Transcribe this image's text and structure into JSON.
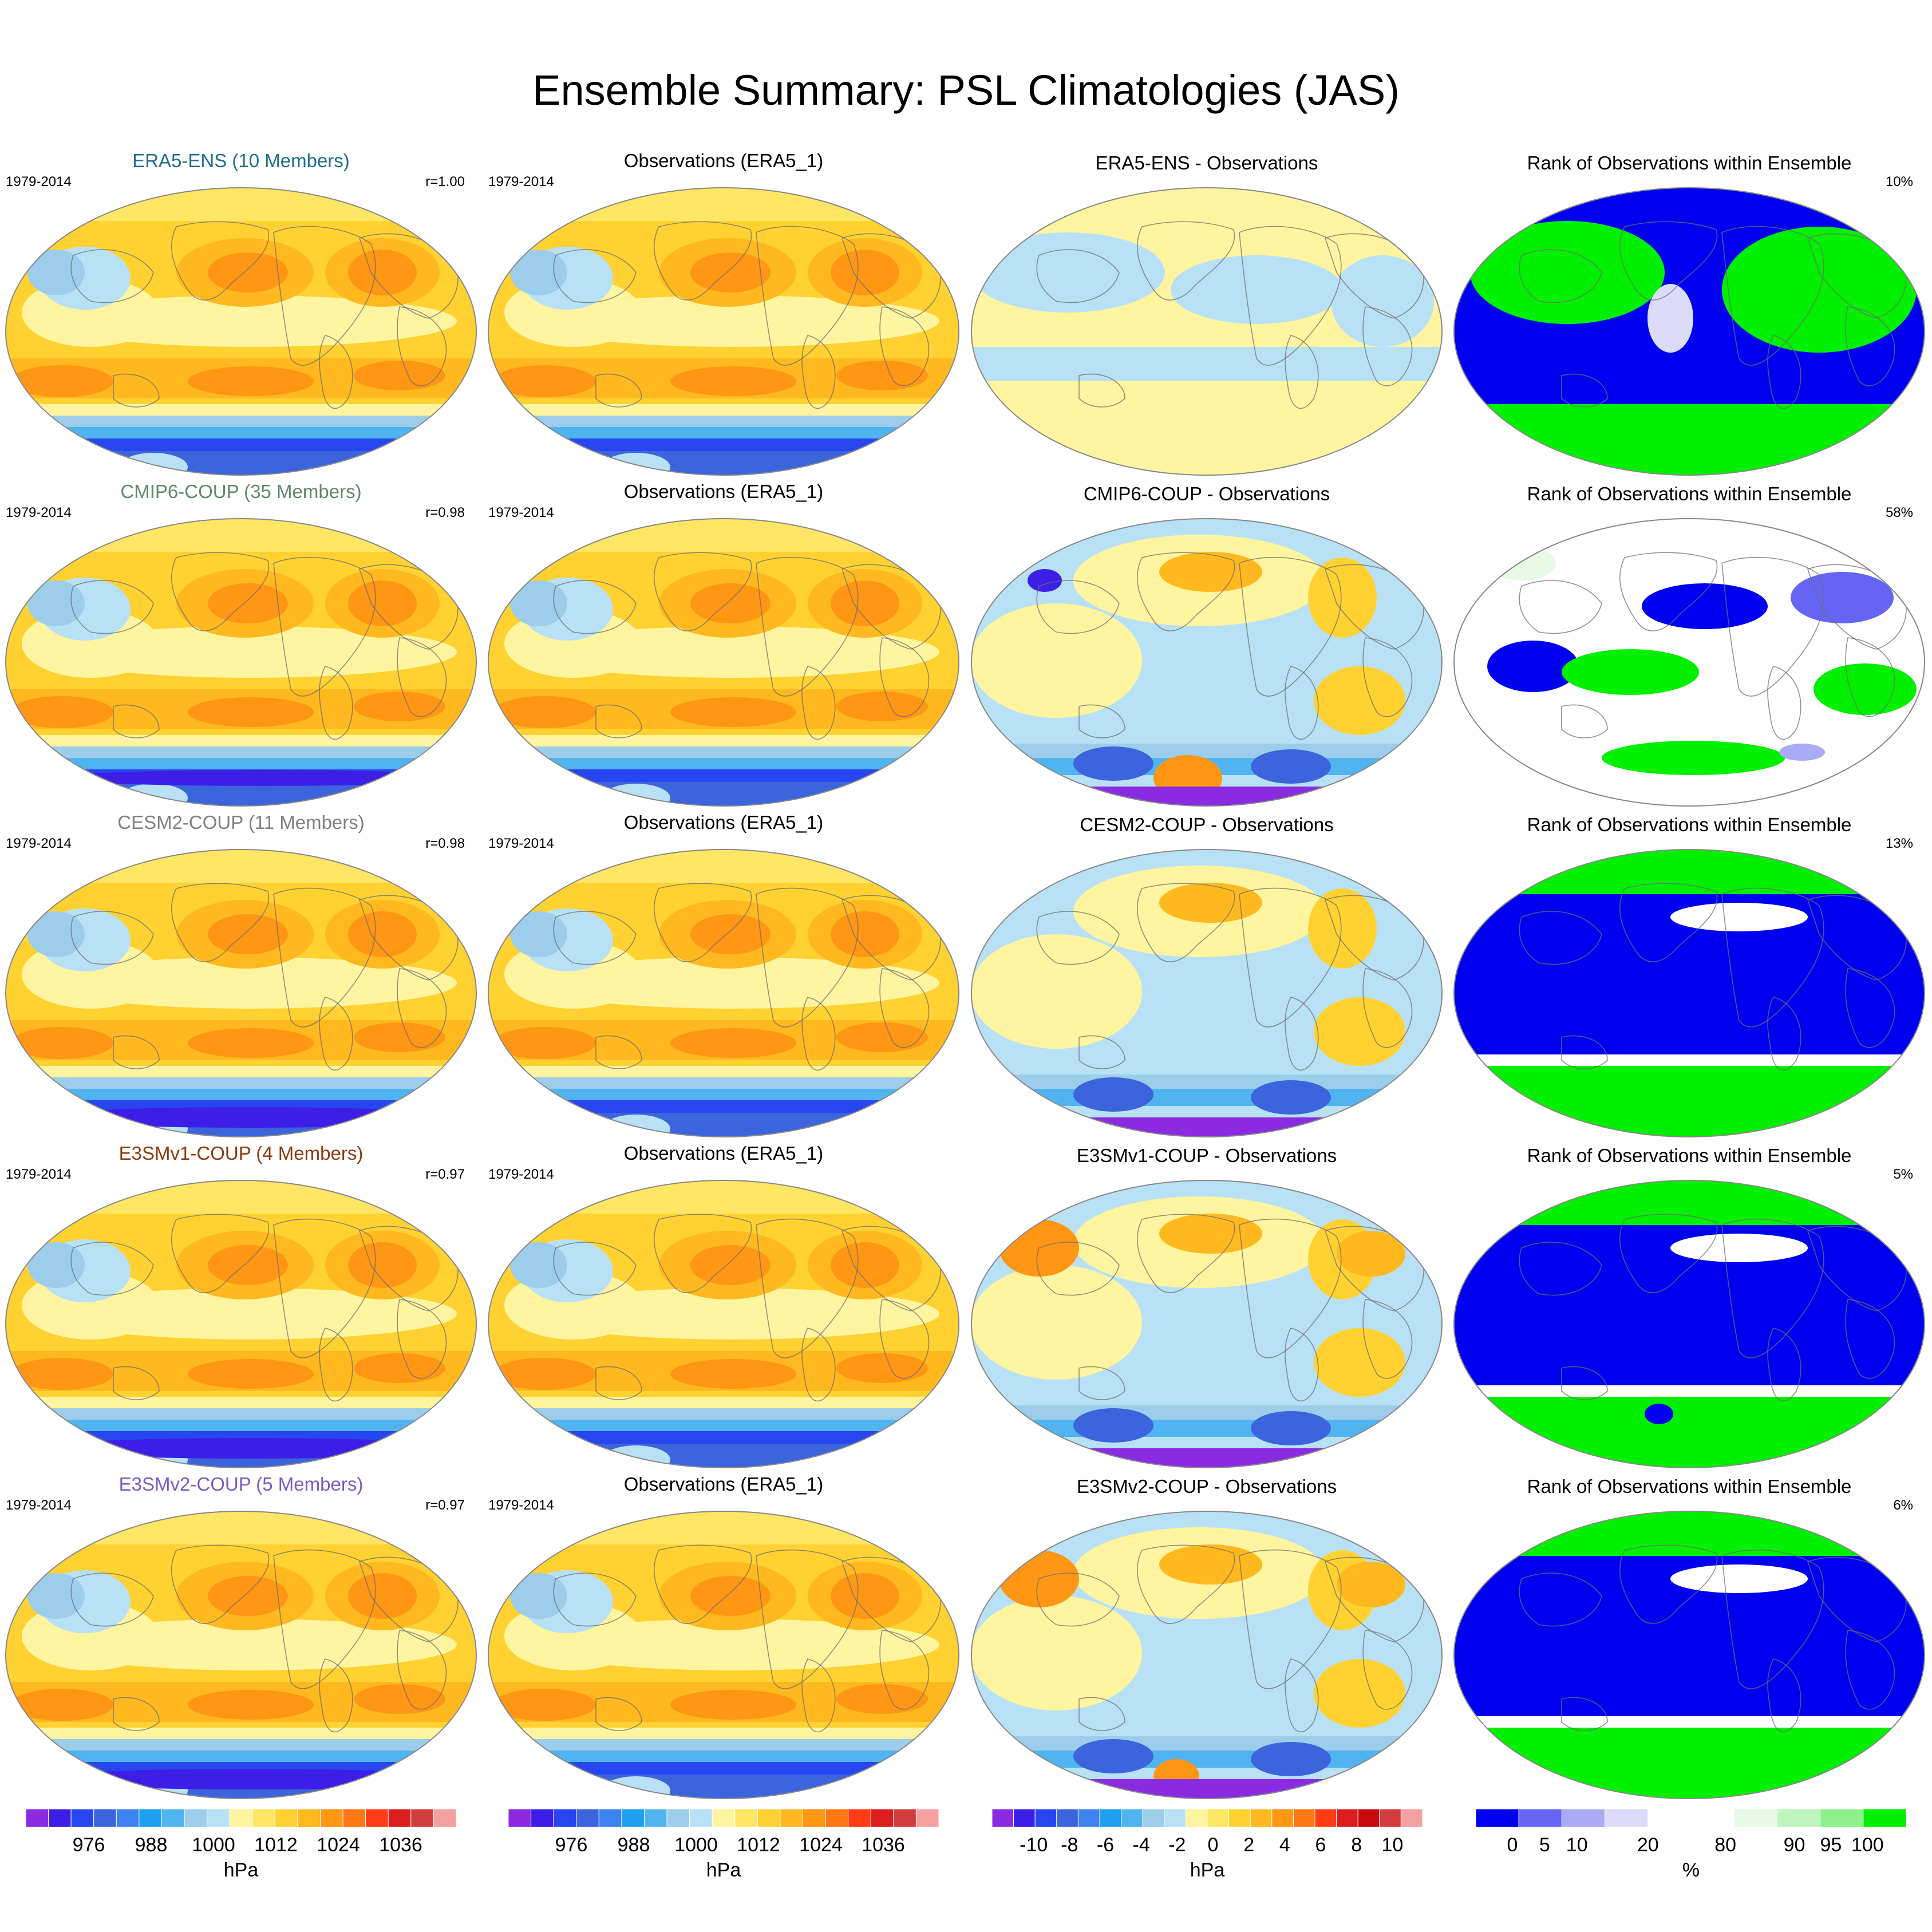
{
  "title": "Ensemble Summary: PSL Climatologies (JAS)",
  "columns": [
    {
      "kind": "model"
    },
    {
      "kind": "obs"
    },
    {
      "kind": "diff"
    },
    {
      "kind": "rank"
    }
  ],
  "rows": [
    {
      "model_title": "ERA5-ENS (10 Members)",
      "model_color": "#1f6f8b",
      "period": "1979-2014",
      "r": "r=1.00",
      "obs_title": "Observations (ERA5_1)",
      "obs_period": "1979-2014",
      "diff_title": "ERA5-ENS - Observations",
      "rank_title": "Rank of Observations within Ensemble",
      "rank_pct": "10%"
    },
    {
      "model_title": "CMIP6-COUP (35 Members)",
      "model_color": "#5f8a6a",
      "period": "1979-2014",
      "r": "r=0.98",
      "obs_title": "Observations (ERA5_1)",
      "obs_period": "1979-2014",
      "diff_title": "CMIP6-COUP - Observations",
      "rank_title": "Rank of Observations within Ensemble",
      "rank_pct": "58%"
    },
    {
      "model_title": "CESM2-COUP (11 Members)",
      "model_color": "#808080",
      "period": "1979-2014",
      "r": "r=0.98",
      "obs_title": "Observations (ERA5_1)",
      "obs_period": "1979-2014",
      "diff_title": "CESM2-COUP - Observations",
      "rank_title": "Rank of Observations within Ensemble",
      "rank_pct": "13%"
    },
    {
      "model_title": "E3SMv1-COUP (4 Members)",
      "model_color": "#8b3a0e",
      "period": "1979-2014",
      "r": "r=0.97",
      "obs_title": "Observations (ERA5_1)",
      "obs_period": "1979-2014",
      "diff_title": "E3SMv1-COUP - Observations",
      "rank_title": "Rank of Observations within Ensemble",
      "rank_pct": "5%"
    },
    {
      "model_title": "E3SMv2-COUP (5 Members)",
      "model_color": "#7a5cc0",
      "period": "1979-2014",
      "r": "r=0.97",
      "obs_title": "Observations (ERA5_1)",
      "obs_period": "1979-2014",
      "diff_title": "E3SMv2-COUP - Observations",
      "rank_title": "Rank of Observations within Ensemble",
      "rank_pct": "6%"
    }
  ],
  "colorbars": [
    {
      "unit": "hPa",
      "colors": [
        "#8a2be2",
        "#3c1ee6",
        "#2846f0",
        "#3c64dc",
        "#3c82f0",
        "#1ea0f0",
        "#50b4f0",
        "#9ccdeb",
        "#b9e1f5",
        "#fff5a0",
        "#ffe664",
        "#ffd232",
        "#ffb91e",
        "#ff9614",
        "#ff7814",
        "#ff3c14",
        "#dc1e1e",
        "#d23c3c",
        "#f5a0a0"
      ],
      "labels": [
        "976",
        "988",
        "1000",
        "1012",
        "1024",
        "1036"
      ]
    },
    {
      "unit": "hPa",
      "colors": [
        "#8a2be2",
        "#3c1ee6",
        "#2846f0",
        "#3c64dc",
        "#3c82f0",
        "#1ea0f0",
        "#50b4f0",
        "#9ccdeb",
        "#b9e1f5",
        "#fff5a0",
        "#ffe664",
        "#ffd232",
        "#ffb91e",
        "#ff9614",
        "#ff7814",
        "#ff3c14",
        "#dc1e1e",
        "#d23c3c",
        "#f5a0a0"
      ],
      "labels": [
        "976",
        "988",
        "1000",
        "1012",
        "1024",
        "1036"
      ]
    },
    {
      "unit": "hPa",
      "colors": [
        "#8a2be2",
        "#3c1ee6",
        "#2846f0",
        "#3c64dc",
        "#3c82f0",
        "#1ea0f0",
        "#50b4f0",
        "#9ccdeb",
        "#b9e1f5",
        "#fff5a0",
        "#ffe664",
        "#ffd232",
        "#ffb91e",
        "#ff9614",
        "#ff7814",
        "#ff3c14",
        "#dc1e1e",
        "#c80a0a",
        "#d23c3c",
        "#f5a0a0"
      ],
      "labels": [
        "-10",
        "-8",
        "-6",
        "-4",
        "-2",
        "0",
        "2",
        "4",
        "6",
        "8",
        "10"
      ]
    },
    {
      "unit": "%",
      "colors": [
        "#0000f0",
        "#6464f5",
        "#aaaaf5",
        "#dcdcfa",
        "#ffffff",
        "#ffffff",
        "#e6fae6",
        "#bef5be",
        "#8cf08c",
        "#00f000"
      ],
      "labels": [
        "0",
        "5",
        "10",
        "20",
        "80",
        "90",
        "95",
        "100"
      ]
    }
  ]
}
